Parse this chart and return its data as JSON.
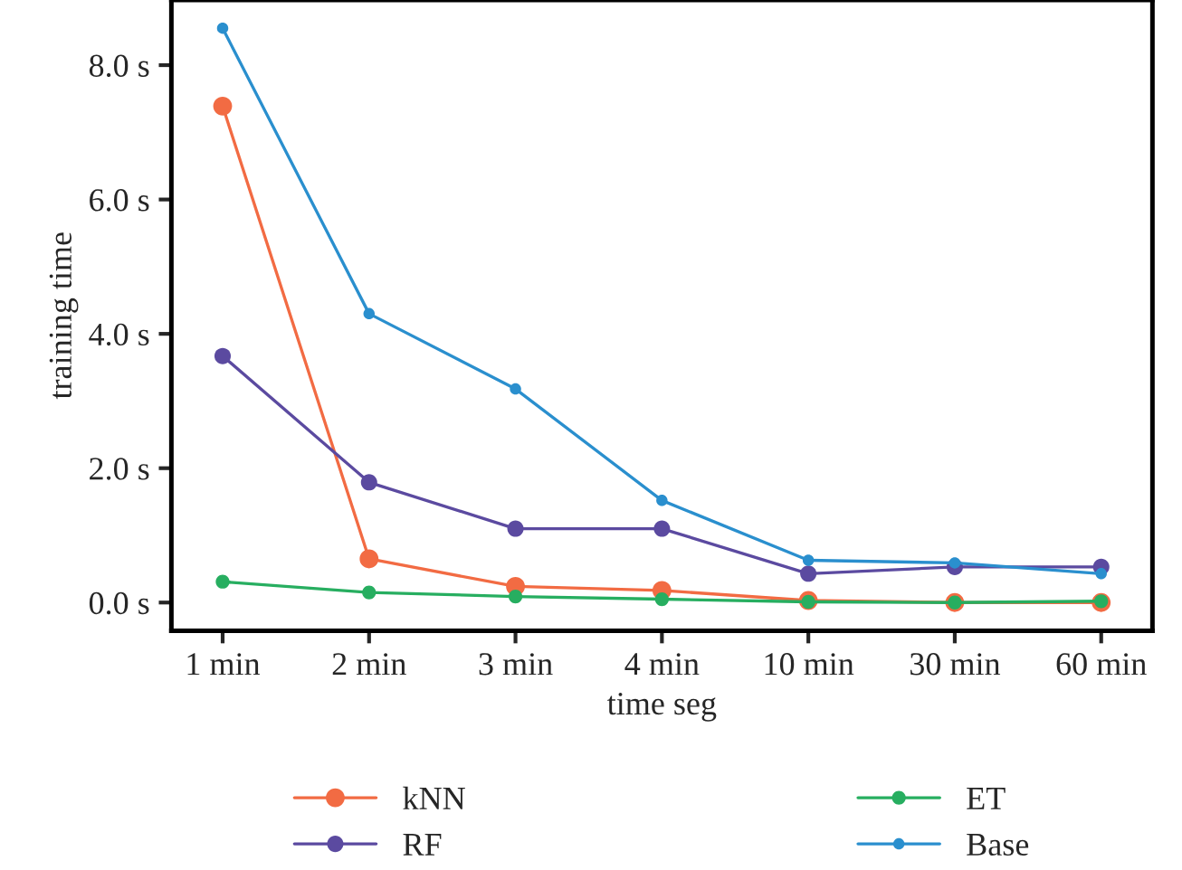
{
  "chart_data": {
    "type": "line",
    "xlabel": "time seg",
    "ylabel": "training time",
    "categories": [
      "1 min",
      "2 min",
      "3 min",
      "4 min",
      "10 min",
      "30 min",
      "60 min"
    ],
    "series": [
      {
        "name": "kNN",
        "color": "#f26b43",
        "values": [
          7.39,
          0.65,
          0.24,
          0.18,
          0.03,
          0.0,
          0.0
        ]
      },
      {
        "name": "RF",
        "color": "#5b4aa0",
        "values": [
          3.67,
          1.79,
          1.1,
          1.1,
          0.43,
          0.53,
          0.53
        ]
      },
      {
        "name": "ET",
        "color": "#27ae60",
        "values": [
          0.31,
          0.15,
          0.09,
          0.05,
          0.01,
          0.0,
          0.02
        ]
      },
      {
        "name": "Base",
        "color": "#2a8fce",
        "values": [
          8.55,
          4.3,
          3.18,
          1.52,
          0.63,
          0.59,
          0.43
        ]
      }
    ],
    "ylim": [
      -0.42,
      8.97
    ],
    "yticks": [
      {
        "value": 0,
        "label": "0.0 s"
      },
      {
        "value": 2,
        "label": "2.0 s"
      },
      {
        "value": 4,
        "label": "4.0 s"
      },
      {
        "value": 6,
        "label": "6.0 s"
      },
      {
        "value": 8,
        "label": "8.0 s"
      }
    ],
    "grid": false,
    "legend": "bottom",
    "marker": "circle",
    "line_style": "solid"
  }
}
